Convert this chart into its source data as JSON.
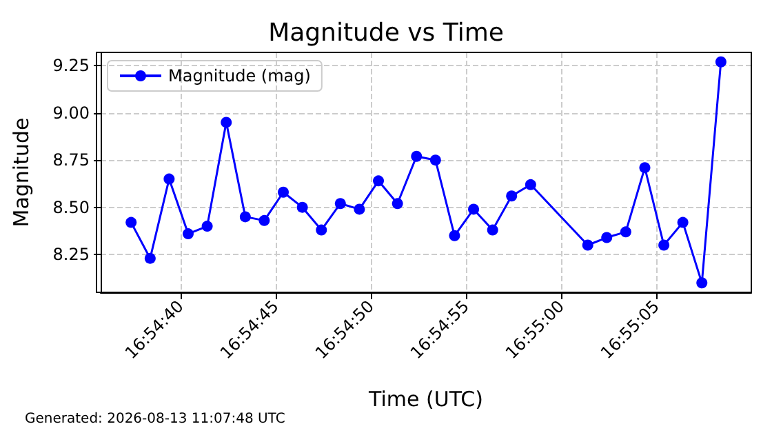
{
  "chart_data": {
    "type": "line",
    "title": "Magnitude vs Time",
    "xlabel": "Time (UTC)",
    "ylabel": "Magnitude",
    "annotations": [
      "Generated: 2026-08-13 11:07:48 UTC"
    ],
    "x": [
      16.910389,
      16.910667,
      16.910944,
      16.911222,
      16.9115,
      16.911778,
      16.912056,
      16.912333,
      16.912611,
      16.912889,
      16.913167,
      16.913444,
      16.913722,
      16.914,
      16.914278,
      16.914556,
      16.914833,
      16.915111,
      16.915389,
      16.915667,
      16.915944,
      16.916222,
      16.917056,
      16.917333,
      16.917611,
      16.917889,
      16.918167,
      16.918444,
      16.918722,
      16.919
    ],
    "series": [
      {
        "name": "Magnitude (mag)",
        "color": "#0000ff",
        "values": [
          8.42,
          8.23,
          8.65,
          8.36,
          8.4,
          8.95,
          8.45,
          8.43,
          8.58,
          8.5,
          8.38,
          8.52,
          8.49,
          8.64,
          8.52,
          8.77,
          8.75,
          8.35,
          8.49,
          8.38,
          8.56,
          8.62,
          8.3,
          8.34,
          8.37,
          8.71,
          8.3,
          8.42,
          8.1,
          9.27
        ]
      }
    ],
    "xlim": [
      16.909944,
      16.919444
    ],
    "xticks": [
      {
        "value": 16.911111,
        "label": "16:54:40"
      },
      {
        "value": 16.9125,
        "label": "16:54:45"
      },
      {
        "value": 16.913889,
        "label": "16:54:50"
      },
      {
        "value": 16.915278,
        "label": "16:54:55"
      },
      {
        "value": 16.916667,
        "label": "16:55:00"
      },
      {
        "value": 16.918056,
        "label": "16:55:05"
      }
    ],
    "ylim": [
      8.05,
      9.32
    ],
    "yticks": [
      {
        "value": 8.25,
        "label": "8.25"
      },
      {
        "value": 8.5,
        "label": "8.50"
      },
      {
        "value": 8.75,
        "label": "8.75"
      },
      {
        "value": 9,
        "label": "9.00"
      },
      {
        "value": 9.25,
        "label": "9.25"
      }
    ],
    "grid": true,
    "legend": "top left",
    "marker": "circle",
    "line_style": "solid"
  }
}
